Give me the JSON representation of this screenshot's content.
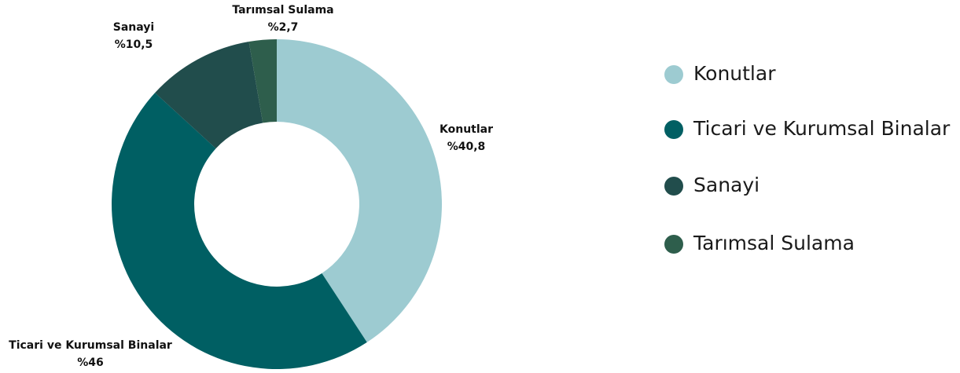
{
  "chart_data": {
    "type": "donut",
    "categories": [
      "Konutlar",
      "Ticari ve Kurumsal Binalar",
      "Sanayi",
      "Tarımsal Sulama"
    ],
    "values": [
      40.8,
      46,
      10.5,
      2.7
    ],
    "value_labels": [
      "%40,8",
      "%46",
      "%10,5",
      "%2,7"
    ],
    "colors": [
      "#9dcbd1",
      "#005f63",
      "#214d4c",
      "#2e5e4c"
    ],
    "legend": "right"
  }
}
